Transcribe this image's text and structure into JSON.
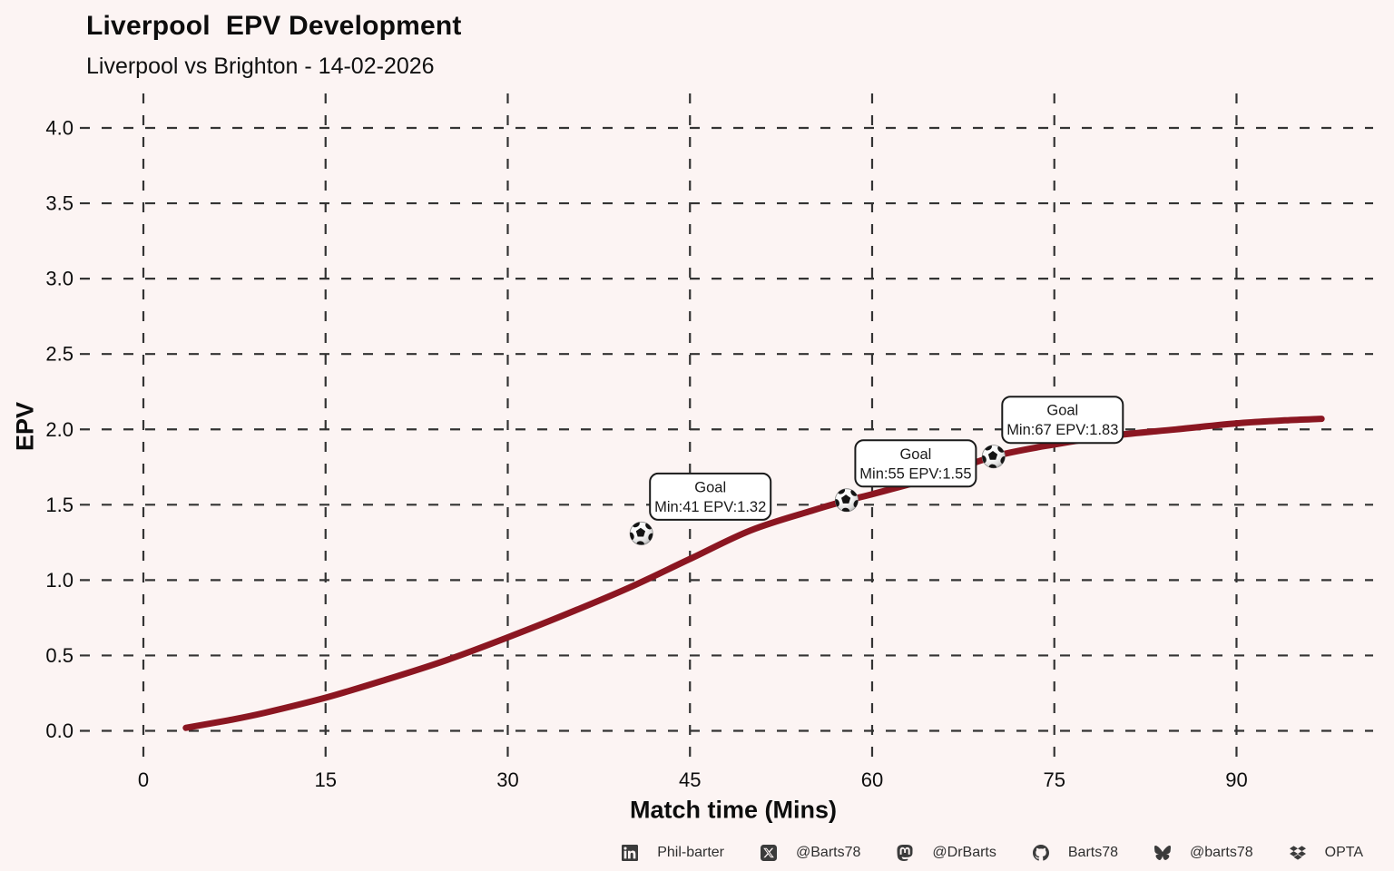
{
  "colors": {
    "background": "#fcf4f3",
    "curve": "#8b1621",
    "grid": "#333333",
    "text": "#0d0d0d",
    "annotation_bg": "#ffffff",
    "annotation_border": "#1a1a1a",
    "footer_text": "#2f2f2f"
  },
  "chart_data": {
    "type": "line",
    "title": "Liverpool  EPV Development",
    "subtitle": "Liverpool vs Brighton - 14-02-2026",
    "xlabel": "Match time (Mins)",
    "ylabel": "EPV",
    "x_ticks": [
      0,
      15,
      30,
      45,
      60,
      75,
      90
    ],
    "y_ticks": [
      0.0,
      0.5,
      1.0,
      1.5,
      2.0,
      2.5,
      3.0,
      3.5,
      4.0
    ],
    "y_tick_labels": [
      "0.0",
      "0.5",
      "1.0",
      "1.5",
      "2.0",
      "2.5",
      "3.0",
      "3.5",
      "4.0"
    ],
    "xlim": [
      0,
      97
    ],
    "ylim": [
      0.0,
      4.0
    ],
    "grid": "dashed-both-axes",
    "legend": "none",
    "series": [
      {
        "name": "Liverpool EPV",
        "color": "#8b1621",
        "x": [
          3.5,
          7,
          10,
          15,
          20,
          25,
          30,
          35,
          40,
          45,
          50,
          55,
          58,
          60,
          65,
          70,
          75,
          80,
          85,
          90,
          94,
          97
        ],
        "y": [
          0.02,
          0.07,
          0.12,
          0.22,
          0.34,
          0.47,
          0.62,
          0.78,
          0.95,
          1.14,
          1.33,
          1.46,
          1.53,
          1.57,
          1.68,
          1.82,
          1.9,
          1.96,
          2.0,
          2.04,
          2.06,
          2.07
        ]
      }
    ],
    "annotations": [
      {
        "label": "Goal",
        "text": "Min:41 EPV:1.32",
        "min": 41,
        "epv": 1.32,
        "marker": "soccer-ball",
        "marker_min": 41.0,
        "marker_epv": 1.31
      },
      {
        "label": "Goal",
        "text": "Min:55 EPV:1.55",
        "min": 55,
        "epv": 1.55,
        "marker": "soccer-ball",
        "marker_min": 57.9,
        "marker_epv": 1.53
      },
      {
        "label": "Goal",
        "text": "Min:67 EPV:1.83",
        "min": 67,
        "epv": 1.83,
        "marker": "soccer-ball",
        "marker_min": 70.0,
        "marker_epv": 1.82
      }
    ]
  },
  "footer": {
    "items": [
      {
        "icon": "linkedin-icon",
        "label": "Phil-barter"
      },
      {
        "icon": "x-icon",
        "label": "@Barts78"
      },
      {
        "icon": "mastodon-icon",
        "label": "@DrBarts"
      },
      {
        "icon": "github-icon",
        "label": "Barts78"
      },
      {
        "icon": "bluesky-icon",
        "label": "@barts78"
      },
      {
        "icon": "dropbox-icon",
        "label": "OPTA"
      }
    ]
  }
}
